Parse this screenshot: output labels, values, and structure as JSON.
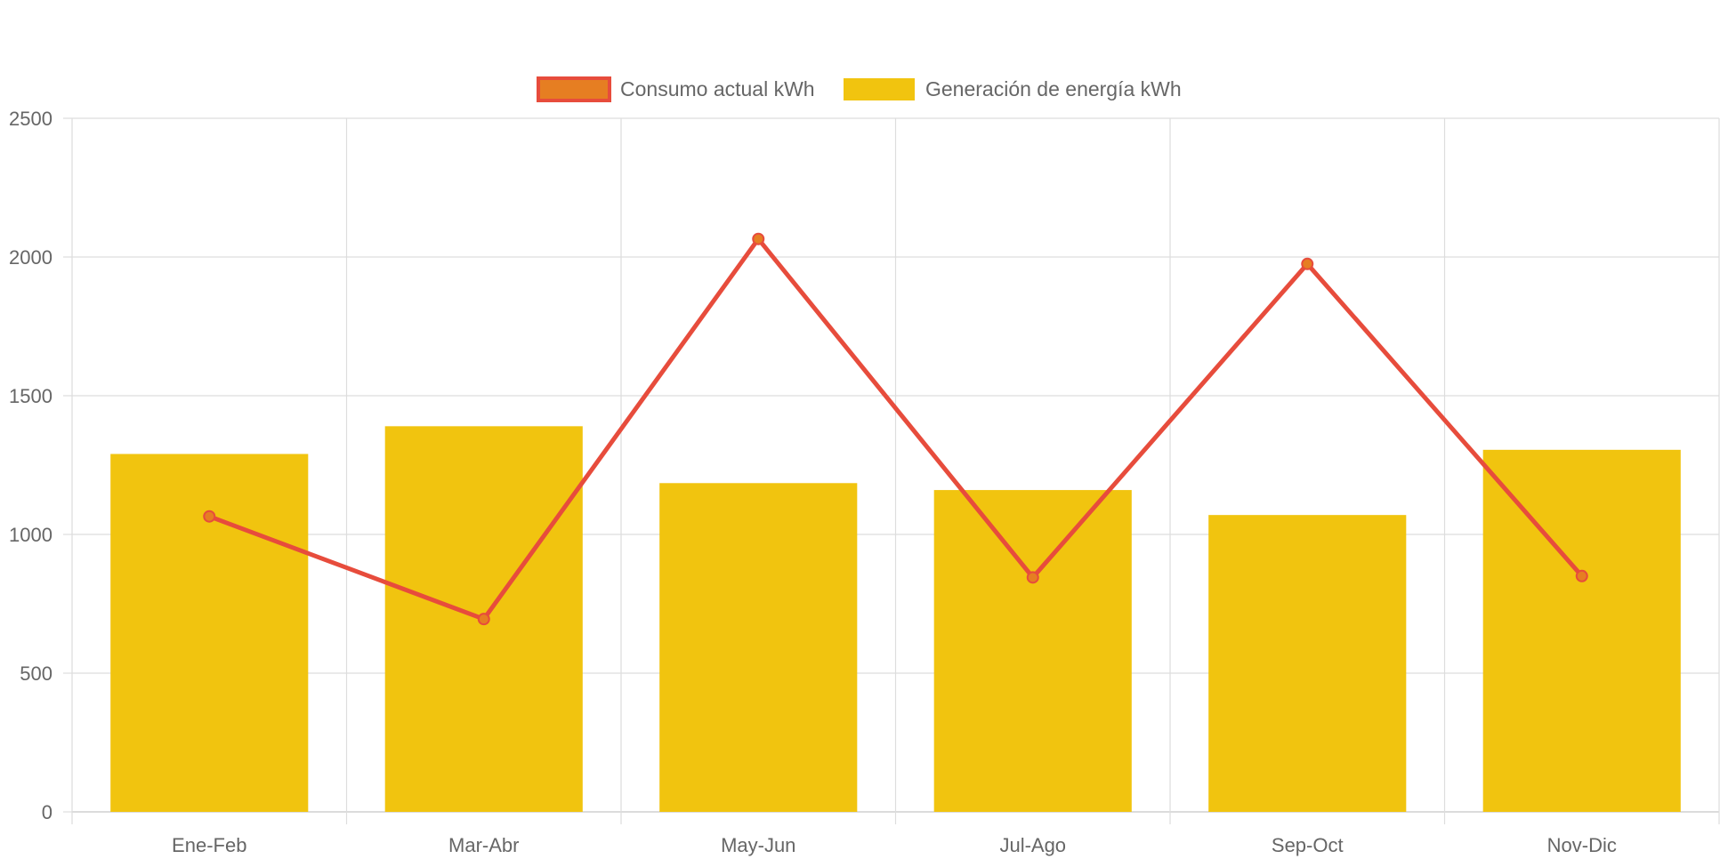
{
  "chart_data": {
    "type": "bar",
    "categories": [
      "Ene-Feb",
      "Mar-Abr",
      "May-Jun",
      "Jul-Ago",
      "Sep-Oct",
      "Nov-Dic"
    ],
    "ylim": [
      0,
      2500
    ],
    "yticks": [
      0,
      500,
      1000,
      1500,
      2000,
      2500
    ],
    "grid": true,
    "legend_position": "top-center",
    "series": [
      {
        "name": "Consumo actual kWh",
        "type": "line",
        "values": [
          1065,
          695,
          2065,
          845,
          1975,
          850
        ],
        "color": "#e74c3c",
        "point_fill": "#e67e22"
      },
      {
        "name": "Generación de energía kWh",
        "type": "bar",
        "values": [
          1290,
          1390,
          1185,
          1160,
          1070,
          1305
        ],
        "color": "#f1c40f"
      }
    ]
  }
}
